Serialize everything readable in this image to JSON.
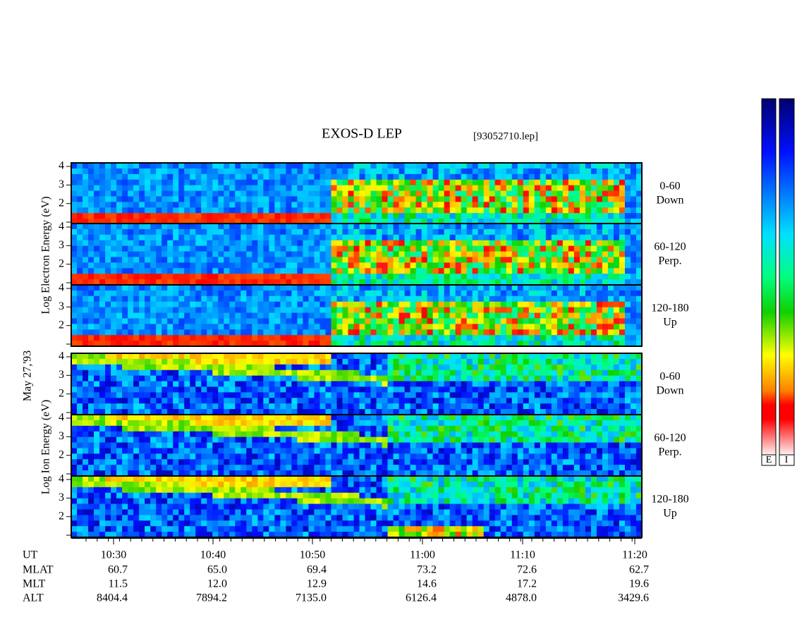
{
  "title": "EXOS-D LEP",
  "file": "[93052710.lep]",
  "date": "May 27,'93",
  "electron_label": "Log Electron Energy (eV)",
  "ion_label": "Log Ion Energy (eV)",
  "panels": [
    {
      "angle": "0-60",
      "direction": "Down",
      "ticks": [
        2,
        3,
        4
      ]
    },
    {
      "angle": "60-120",
      "direction": "Perp.",
      "ticks": [
        2,
        3,
        4
      ]
    },
    {
      "angle": "120-180",
      "direction": "Up",
      "ticks": [
        2,
        3,
        4
      ]
    },
    {
      "angle": "0-60",
      "direction": "Down",
      "ticks": [
        2,
        3,
        4
      ]
    },
    {
      "angle": "60-120",
      "direction": "Perp.",
      "ticks": [
        2,
        3,
        4
      ]
    },
    {
      "angle": "120-180",
      "direction": "Up",
      "ticks": [
        2,
        3,
        4
      ]
    }
  ],
  "x_axis": {
    "row_labels": [
      "UT",
      "MLAT",
      "MLT",
      "ALT"
    ],
    "columns": [
      [
        "10:30",
        "60.7",
        "11.5",
        "8404.4"
      ],
      [
        "10:40",
        "65.0",
        "12.0",
        "7894.2"
      ],
      [
        "10:50",
        "69.4",
        "12.9",
        "7135.0"
      ],
      [
        "11:00",
        "73.2",
        "14.6",
        "6126.4"
      ],
      [
        "11:10",
        "72.6",
        "17.2",
        "4878.0"
      ],
      [
        "11:20",
        "62.7",
        "19.6",
        "3429.6"
      ]
    ]
  },
  "colorbar_labels": [
    "E",
    "I"
  ]
}
